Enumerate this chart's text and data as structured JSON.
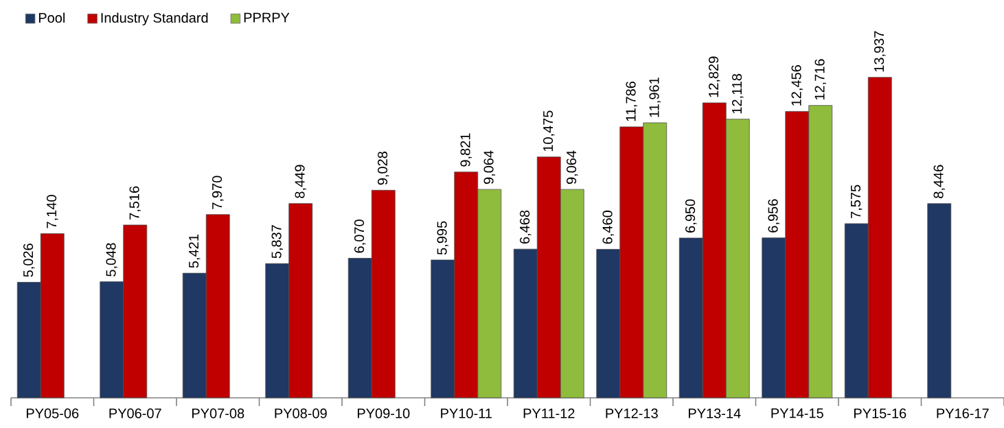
{
  "chart_data": {
    "type": "bar",
    "categories": [
      "PY05-06",
      "PY06-07",
      "PY07-08",
      "PY08-09",
      "PY09-10",
      "PY10-11",
      "PY11-12",
      "PY12-13",
      "PY13-14",
      "PY14-15",
      "PY15-16",
      "PY16-17"
    ],
    "series": [
      {
        "name": "Pool",
        "color": "#1f3864",
        "values": [
          5026,
          5048,
          5421,
          5837,
          6070,
          5995,
          6468,
          6460,
          6950,
          6956,
          7575,
          8446
        ],
        "value_labels": [
          "5,026",
          "5,048",
          "5,421",
          "5,837",
          "6,070",
          "5,995",
          "6,468",
          "6,460",
          "6,950",
          "6,956",
          "7,575",
          "8,446"
        ]
      },
      {
        "name": "Industry Standard",
        "color": "#c00000",
        "values": [
          7140,
          7516,
          7970,
          8449,
          9028,
          9821,
          10475,
          11786,
          12829,
          12456,
          13937,
          null
        ],
        "value_labels": [
          "7,140",
          "7,516",
          "7,970",
          "8,449",
          "9,028",
          "9,821",
          "10,475",
          "11,786",
          "12,829",
          "12,456",
          "13,937",
          null
        ]
      },
      {
        "name": "PPRPY",
        "color": "#8fbc3c",
        "values": [
          null,
          null,
          null,
          null,
          null,
          9064,
          9064,
          11961,
          12118,
          12716,
          null,
          null
        ],
        "value_labels": [
          null,
          null,
          null,
          null,
          null,
          "9,064",
          "9,064",
          "11,961",
          "12,118",
          "12,716",
          null,
          null
        ]
      }
    ],
    "legend": "top left"
  }
}
